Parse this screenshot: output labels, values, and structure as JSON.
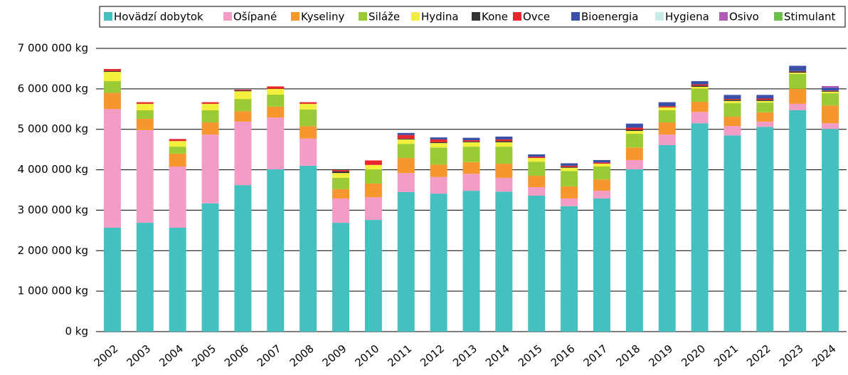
{
  "chart_data": {
    "type": "stacked_bar",
    "categories": [
      "2002",
      "2003",
      "2004",
      "2005",
      "2006",
      "2007",
      "2008",
      "2009",
      "2010",
      "2011",
      "2012",
      "2013",
      "2014",
      "2015",
      "2016",
      "2017",
      "2018",
      "2019",
      "2020",
      "2021",
      "2022",
      "2023",
      "2024"
    ],
    "series": [
      {
        "name": "Hovädzí dobytok",
        "color": "#44c0c0",
        "values": [
          2570000,
          2690000,
          2570000,
          3170000,
          3620000,
          4010000,
          4100000,
          2690000,
          2760000,
          3450000,
          3410000,
          3480000,
          3460000,
          3360000,
          3100000,
          3290000,
          4010000,
          4610000,
          5150000,
          4850000,
          5060000,
          5470000,
          5010000
        ]
      },
      {
        "name": "Ošípané",
        "color": "#f29cc6",
        "values": [
          2930000,
          2290000,
          1510000,
          1700000,
          1570000,
          1280000,
          670000,
          600000,
          560000,
          470000,
          410000,
          420000,
          340000,
          210000,
          190000,
          190000,
          230000,
          260000,
          280000,
          230000,
          130000,
          160000,
          140000
        ]
      },
      {
        "name": "Kyseliny",
        "color": "#f6962f",
        "values": [
          400000,
          280000,
          320000,
          300000,
          260000,
          270000,
          310000,
          230000,
          340000,
          370000,
          310000,
          290000,
          350000,
          280000,
          300000,
          280000,
          310000,
          300000,
          250000,
          230000,
          230000,
          370000,
          440000
        ]
      },
      {
        "name": "Siláže",
        "color": "#9acb34",
        "values": [
          290000,
          210000,
          170000,
          300000,
          300000,
          300000,
          410000,
          280000,
          350000,
          350000,
          420000,
          380000,
          420000,
          350000,
          380000,
          320000,
          340000,
          300000,
          320000,
          340000,
          240000,
          370000,
          300000
        ]
      },
      {
        "name": "Hydina",
        "color": "#f4ee3c",
        "values": [
          230000,
          160000,
          140000,
          160000,
          190000,
          140000,
          140000,
          120000,
          110000,
          110000,
          110000,
          110000,
          110000,
          90000,
          80000,
          70000,
          70000,
          70000,
          50000,
          50000,
          40000,
          30000,
          40000
        ]
      },
      {
        "name": "Kone",
        "color": "#333333",
        "values": [
          20000,
          0,
          0,
          0,
          20000,
          0,
          0,
          40000,
          0,
          20000,
          20000,
          20000,
          30000,
          0,
          20000,
          0,
          30000,
          0,
          30000,
          30000,
          30000,
          30000,
          20000
        ]
      },
      {
        "name": "Ovce",
        "color": "#e8262b",
        "values": [
          50000,
          40000,
          50000,
          40000,
          20000,
          60000,
          40000,
          30000,
          110000,
          90000,
          70000,
          30000,
          40000,
          30000,
          30000,
          30000,
          50000,
          30000,
          30000,
          20000,
          30000,
          10000,
          10000
        ]
      },
      {
        "name": "Bioenergia",
        "color": "#3a4fa8",
        "values": [
          0,
          0,
          0,
          0,
          0,
          0,
          0,
          0,
          0,
          50000,
          50000,
          60000,
          70000,
          60000,
          60000,
          60000,
          100000,
          100000,
          80000,
          100000,
          90000,
          130000,
          70000
        ]
      },
      {
        "name": "Hygiena",
        "color": "#c6ece8",
        "values": [
          0,
          0,
          0,
          0,
          0,
          0,
          0,
          0,
          0,
          0,
          0,
          0,
          0,
          0,
          0,
          0,
          0,
          0,
          0,
          0,
          0,
          0,
          0
        ]
      },
      {
        "name": "Osivo",
        "color": "#b05cb5",
        "values": [
          0,
          0,
          0,
          0,
          0,
          0,
          0,
          0,
          0,
          0,
          0,
          0,
          0,
          0,
          0,
          0,
          0,
          0,
          0,
          0,
          0,
          0,
          40000
        ]
      },
      {
        "name": "Stimulant",
        "color": "#6cbf4a",
        "values": [
          0,
          0,
          0,
          0,
          0,
          0,
          0,
          0,
          0,
          0,
          0,
          0,
          0,
          0,
          0,
          0,
          0,
          0,
          0,
          0,
          0,
          0,
          0
        ]
      }
    ],
    "ylim": [
      0,
      7000000
    ],
    "yticks": [
      {
        "value": 0,
        "label": "0 kg"
      },
      {
        "value": 1000000,
        "label": "1 000 000 kg"
      },
      {
        "value": 2000000,
        "label": "2 000 000 kg"
      },
      {
        "value": 3000000,
        "label": "3 000 000 kg"
      },
      {
        "value": 4000000,
        "label": "4 000 000 kg"
      },
      {
        "value": 5000000,
        "label": "5 000 000 kg"
      },
      {
        "value": 6000000,
        "label": "6 000 000 kg"
      },
      {
        "value": 7000000,
        "label": "7 000 000 kg"
      }
    ],
    "grid": true,
    "legend": "top"
  }
}
